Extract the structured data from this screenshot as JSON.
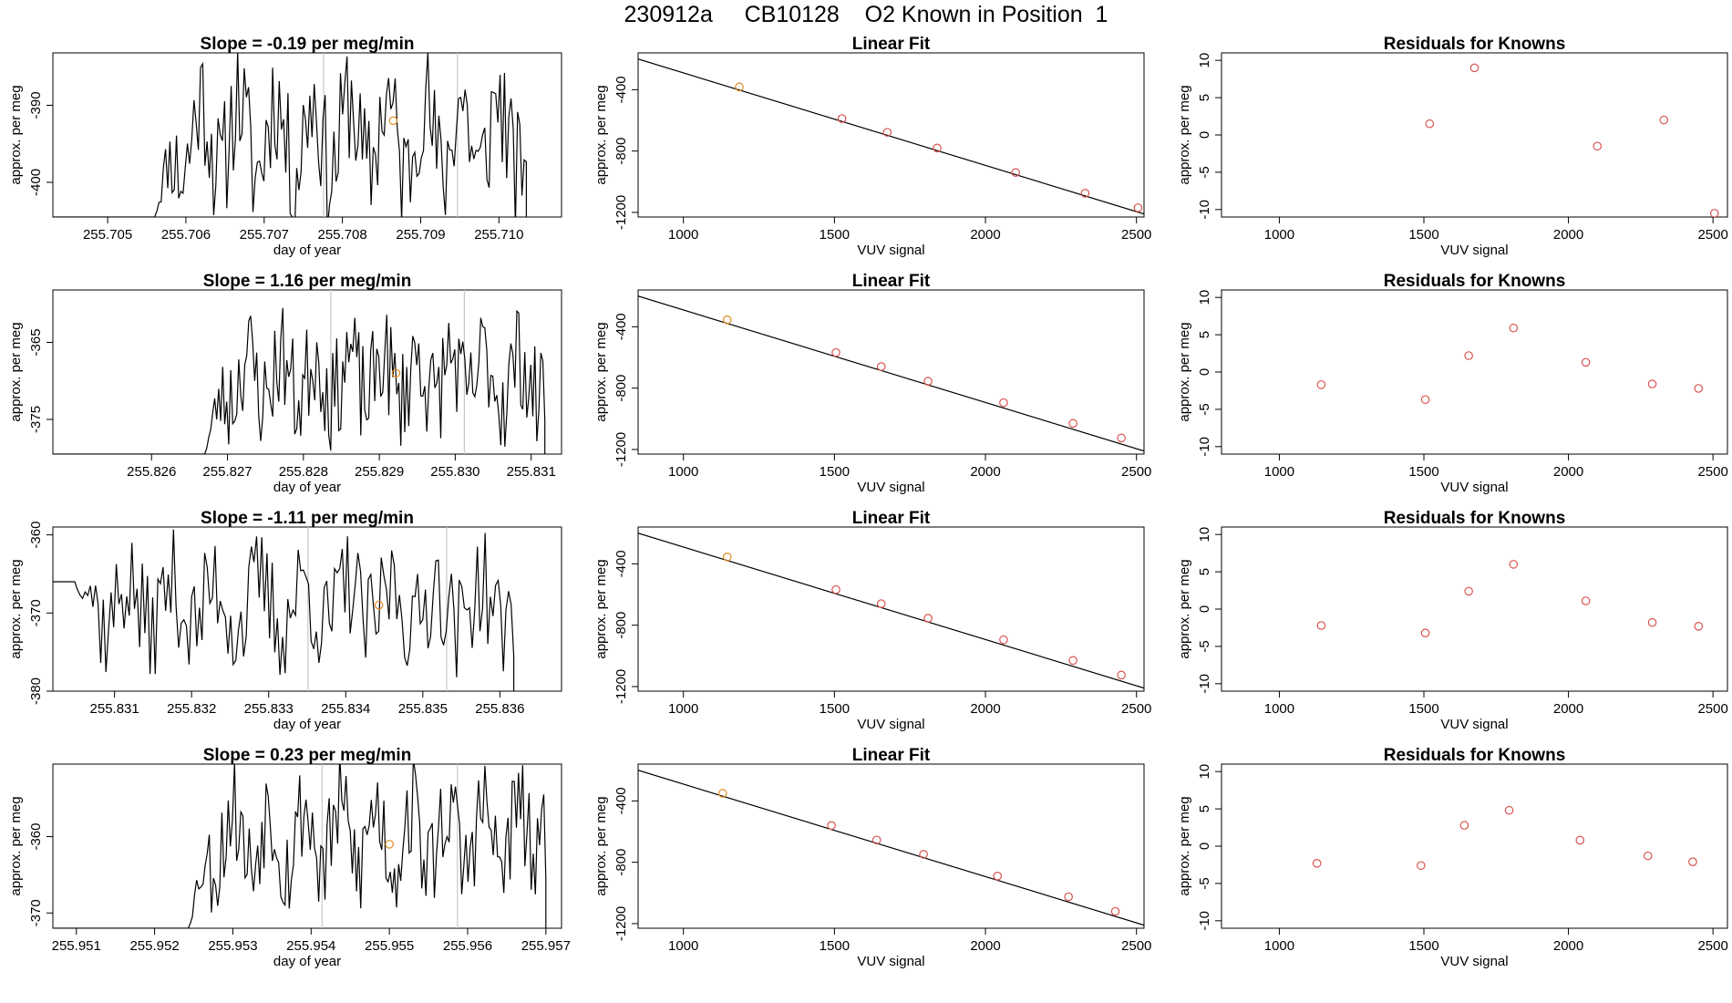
{
  "figure": {
    "main_title": "230912a     CB10128    O2 Known in Position  1",
    "colors": {
      "trace": "#000000",
      "known_point": "#e08a1e",
      "residual_point": "#d9534f",
      "vline": "#c8c8c8",
      "axis": "#000000"
    }
  },
  "chart_data": [
    {
      "row": 1,
      "type": "line",
      "title": "Slope =  -0.19  per meg/min",
      "xlabel": "day of year",
      "ylabel": "approx. per meg",
      "xlim": [
        255.7043,
        255.7108
      ],
      "ylim": [
        -404.5,
        -383.2
      ],
      "xticks": [
        255.705,
        255.706,
        255.707,
        255.708,
        255.709,
        255.71
      ],
      "xtick_labels": [
        "255.705",
        "255.706",
        "255.707",
        "255.708",
        "255.709",
        "255.710"
      ],
      "yticks": [
        -390,
        -400
      ],
      "ytick_labels": [
        "-390",
        "-400"
      ],
      "vlines": [
        255.70776,
        255.70947
      ],
      "known_point": {
        "x": 255.70865,
        "y": -392
      },
      "series_start": 255.7056,
      "series_end": 255.71035,
      "series_start_y": -404.5,
      "base": -394,
      "amp": 5,
      "noise": 6,
      "seed": 11
    },
    {
      "row": 1,
      "type": "scatter",
      "title": "Linear Fit",
      "xlabel": "VUV signal",
      "ylabel": "approx. per meg",
      "xlim": [
        850,
        2525
      ],
      "ylim": [
        -1230,
        -160
      ],
      "xticks": [
        1000,
        1500,
        2000,
        2500
      ],
      "xtick_labels": [
        "1000",
        "1500",
        "2000",
        "2500"
      ],
      "yticks": [
        -400,
        -800,
        -1200
      ],
      "ytick_labels": [
        "-400",
        "-800",
        "-1200"
      ],
      "fit_line": [
        [
          850,
          -200
        ],
        [
          2525,
          -1210
        ]
      ],
      "x": [
        1185,
        1525,
        1675,
        1840,
        2100,
        2330,
        2505
      ],
      "y": [
        -382,
        -588,
        -678,
        -780,
        -940,
        -1075,
        -1170
      ],
      "known_index": 0
    },
    {
      "row": 1,
      "type": "scatter",
      "title": "Residuals for Knowns",
      "xlabel": "VUV signal",
      "ylabel": "approx. per meg",
      "xlim": [
        800,
        2550
      ],
      "ylim": [
        -11,
        11
      ],
      "xticks": [
        1000,
        1500,
        2000,
        2500
      ],
      "xtick_labels": [
        "1000",
        "1500",
        "2000",
        "2500"
      ],
      "yticks": [
        10,
        5,
        0,
        -5,
        -10
      ],
      "ytick_labels": [
        "10",
        "5",
        "0",
        "-5",
        "-10"
      ],
      "x": [
        1520,
        1675,
        2100,
        2330,
        2505
      ],
      "y": [
        1.5,
        9,
        -1.5,
        2,
        -10.5
      ]
    },
    {
      "row": 2,
      "type": "line",
      "title": "Slope =  1.16  per meg/min",
      "xlabel": "day of year",
      "ylabel": "approx. per meg",
      "xlim": [
        255.8247,
        255.8314
      ],
      "ylim": [
        -379.5,
        -358.2
      ],
      "xticks": [
        255.826,
        255.827,
        255.828,
        255.829,
        255.83,
        255.831
      ],
      "xtick_labels": [
        "255.826",
        "255.827",
        "255.828",
        "255.829",
        "255.830",
        "255.831"
      ],
      "vlines": [
        255.82836,
        255.83012
      ],
      "yticks": [
        -365,
        -375
      ],
      "ytick_labels": [
        "-365",
        "-375"
      ],
      "known_point": {
        "x": 255.82922,
        "y": -369
      },
      "series_start": 255.8267,
      "series_end": 255.83118,
      "series_start_y": -379.5,
      "base": -369.5,
      "amp": 3,
      "noise": 5,
      "seed": 23
    },
    {
      "row": 2,
      "type": "scatter",
      "title": "Linear Fit",
      "xlabel": "VUV signal",
      "ylabel": "approx. per meg",
      "xlim": [
        850,
        2525
      ],
      "ylim": [
        -1230,
        -160
      ],
      "xticks": [
        1000,
        1500,
        2000,
        2500
      ],
      "xtick_labels": [
        "1000",
        "1500",
        "2000",
        "2500"
      ],
      "yticks": [
        -400,
        -800,
        -1200
      ],
      "ytick_labels": [
        "-400",
        "-800",
        "-1200"
      ],
      "fit_line": [
        [
          850,
          -200
        ],
        [
          2525,
          -1210
        ]
      ],
      "x": [
        1145,
        1505,
        1655,
        1810,
        2060,
        2290,
        2450
      ],
      "y": [
        -355,
        -568,
        -660,
        -755,
        -895,
        -1030,
        -1125
      ],
      "known_index": 0
    },
    {
      "row": 2,
      "type": "scatter",
      "title": "Residuals for Knowns",
      "xlabel": "VUV signal",
      "ylabel": "approx. per meg",
      "xlim": [
        800,
        2550
      ],
      "ylim": [
        -11,
        11
      ],
      "xticks": [
        1000,
        1500,
        2000,
        2500
      ],
      "xtick_labels": [
        "1000",
        "1500",
        "2000",
        "2500"
      ],
      "yticks": [
        10,
        5,
        0,
        -5,
        -10
      ],
      "ytick_labels": [
        "10",
        "5",
        "0",
        "-5",
        "-10"
      ],
      "x": [
        1145,
        1505,
        1655,
        1810,
        2060,
        2290,
        2450
      ],
      "y": [
        -1.7,
        -3.7,
        2.2,
        5.9,
        1.3,
        -1.6,
        -2.2
      ]
    },
    {
      "row": 3,
      "type": "line",
      "title": "Slope =  -1.11  per meg/min",
      "xlabel": "day of year",
      "ylabel": "approx. per meg",
      "xlim": [
        255.8302,
        255.8368
      ],
      "ylim": [
        -380,
        -359
      ],
      "xticks": [
        255.831,
        255.832,
        255.833,
        255.834,
        255.835,
        255.836
      ],
      "xtick_labels": [
        "255.831",
        "255.832",
        "255.833",
        "255.834",
        "255.835",
        "255.836"
      ],
      "yticks": [
        -360,
        -370,
        -380
      ],
      "ytick_labels": [
        "-360",
        "-370",
        "-380"
      ],
      "vlines": [
        255.83351,
        255.83531
      ],
      "known_point": {
        "x": 255.83443,
        "y": -369
      },
      "series_start": 255.83045,
      "series_end": 255.83618,
      "series_start_y": -366,
      "base": -369,
      "amp": 3,
      "noise": 5,
      "seed": 37
    },
    {
      "row": 3,
      "type": "scatter",
      "title": "Linear Fit",
      "xlabel": "VUV signal",
      "ylabel": "approx. per meg",
      "xlim": [
        850,
        2525
      ],
      "ylim": [
        -1230,
        -160
      ],
      "xticks": [
        1000,
        1500,
        2000,
        2500
      ],
      "xtick_labels": [
        "1000",
        "1500",
        "2000",
        "2500"
      ],
      "yticks": [
        -400,
        -800,
        -1200
      ],
      "ytick_labels": [
        "-400",
        "-800",
        "-1200"
      ],
      "fit_line": [
        [
          850,
          -200
        ],
        [
          2525,
          -1210
        ]
      ],
      "x": [
        1145,
        1505,
        1655,
        1810,
        2060,
        2290,
        2450
      ],
      "y": [
        -355,
        -568,
        -660,
        -755,
        -895,
        -1030,
        -1125
      ],
      "known_index": 0
    },
    {
      "row": 3,
      "type": "scatter",
      "title": "Residuals for Knowns",
      "xlabel": "VUV signal",
      "ylabel": "approx. per meg",
      "xlim": [
        800,
        2550
      ],
      "ylim": [
        -11,
        11
      ],
      "xticks": [
        1000,
        1500,
        2000,
        2500
      ],
      "xtick_labels": [
        "1000",
        "1500",
        "2000",
        "2500"
      ],
      "yticks": [
        10,
        5,
        0,
        -5,
        -10
      ],
      "ytick_labels": [
        "10",
        "5",
        "0",
        "-5",
        "-10"
      ],
      "x": [
        1145,
        1505,
        1655,
        1810,
        2060,
        2290,
        2450
      ],
      "y": [
        -2.2,
        -3.2,
        2.4,
        6,
        1.1,
        -1.8,
        -2.3
      ]
    },
    {
      "row": 4,
      "type": "line",
      "title": "Slope =  0.23  per meg/min",
      "xlabel": "day of year",
      "ylabel": "approx. per meg",
      "xlim": [
        255.9507,
        255.9572
      ],
      "ylim": [
        -372,
        -350.5
      ],
      "xticks": [
        255.951,
        255.952,
        255.953,
        255.954,
        255.955,
        255.956,
        255.957
      ],
      "xtick_labels": [
        "255.951",
        "255.952",
        "255.953",
        "255.954",
        "255.955",
        "255.956",
        "255.957"
      ],
      "yticks": [
        -360,
        -370
      ],
      "ytick_labels": [
        "-360",
        "-370"
      ],
      "vlines": [
        255.95414,
        255.95587
      ],
      "known_point": {
        "x": 255.955,
        "y": -361
      },
      "series_start": 255.95243,
      "series_end": 255.957,
      "series_start_y": -372,
      "base": -360,
      "amp": 4,
      "noise": 5,
      "seed": 53
    },
    {
      "row": 4,
      "type": "scatter",
      "title": "Linear Fit",
      "xlabel": "VUV signal",
      "ylabel": "approx. per meg",
      "xlim": [
        850,
        2525
      ],
      "ylim": [
        -1230,
        -160
      ],
      "xticks": [
        1000,
        1500,
        2000,
        2500
      ],
      "xtick_labels": [
        "1000",
        "1500",
        "2000",
        "2500"
      ],
      "yticks": [
        -400,
        -800,
        -1200
      ],
      "ytick_labels": [
        "-400",
        "-800",
        "-1200"
      ],
      "fit_line": [
        [
          850,
          -200
        ],
        [
          2525,
          -1210
        ]
      ],
      "x": [
        1130,
        1490,
        1640,
        1795,
        2040,
        2275,
        2430
      ],
      "y": [
        -350,
        -560,
        -655,
        -748,
        -890,
        -1025,
        -1120
      ],
      "known_index": 0
    },
    {
      "row": 4,
      "type": "scatter",
      "title": "Residuals for Knowns",
      "xlabel": "VUV signal",
      "ylabel": "approx. per meg",
      "xlim": [
        800,
        2550
      ],
      "ylim": [
        -11,
        11
      ],
      "xticks": [
        1000,
        1500,
        2000,
        2500
      ],
      "xtick_labels": [
        "1000",
        "1500",
        "2000",
        "2500"
      ],
      "yticks": [
        10,
        5,
        0,
        -5,
        -10
      ],
      "ytick_labels": [
        "10",
        "5",
        "0",
        "-5",
        "-10"
      ],
      "x": [
        1130,
        1490,
        1640,
        1795,
        2040,
        2275,
        2430
      ],
      "y": [
        -2.3,
        -2.6,
        2.8,
        4.8,
        0.8,
        -1.3,
        -2.1
      ]
    }
  ]
}
